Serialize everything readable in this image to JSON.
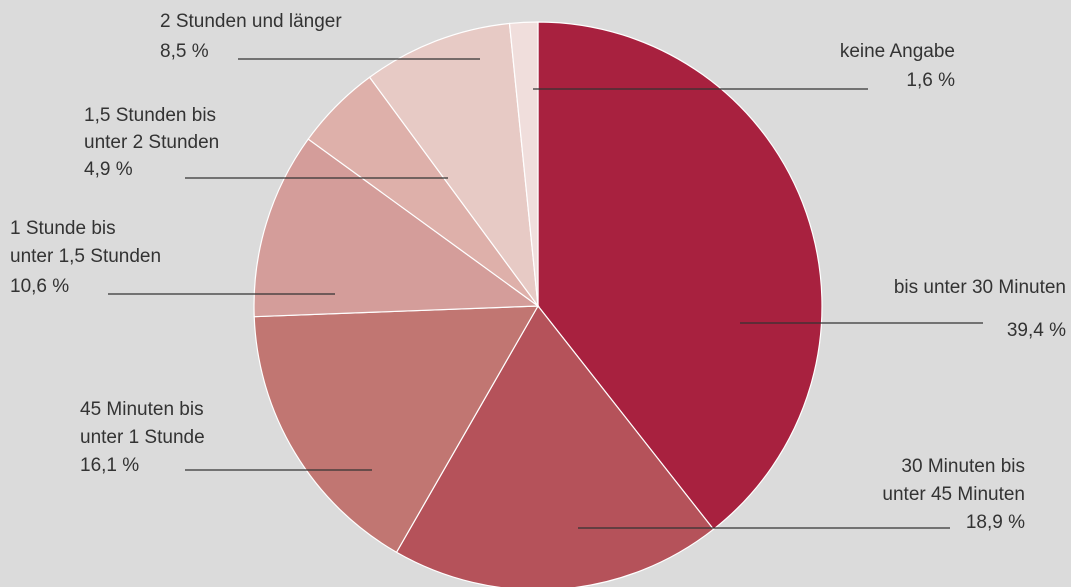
{
  "chart_data": {
    "type": "pie",
    "categories": [
      [
        "bis unter 30 Minuten"
      ],
      [
        "30 Minuten bis",
        "unter 45 Minuten"
      ],
      [
        "45 Minuten bis",
        "unter 1 Stunde"
      ],
      [
        "1 Stunde bis",
        "unter 1,5 Stunden"
      ],
      [
        "1,5 Stunden bis",
        "unter 2 Stunden"
      ],
      [
        "2 Stunden und länger"
      ],
      [
        "keine Angabe"
      ]
    ],
    "values": [
      39.4,
      18.9,
      16.1,
      10.6,
      4.9,
      8.5,
      1.6
    ],
    "value_labels": [
      "39,4 %",
      "18,9 %",
      "16,1 %",
      "10,6 %",
      "4,9 %",
      "8,5 %",
      "1,6 %"
    ],
    "colors": [
      "#a8213f",
      "#b5525a",
      "#c17672",
      "#d49d9a",
      "#deb0aa",
      "#e7cac5",
      "#f0dedc"
    ]
  }
}
